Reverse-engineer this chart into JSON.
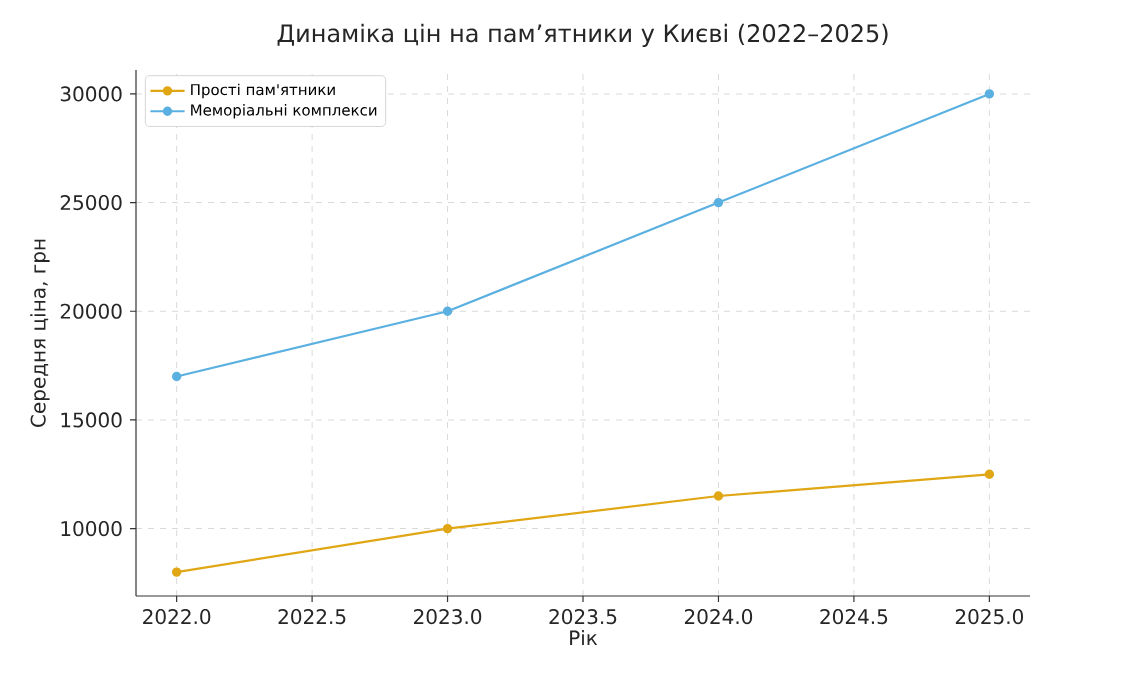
{
  "chart_data": {
    "type": "line",
    "title": "Динаміка цін на пам’ятники у Києві (2022–2025)",
    "xlabel": "Рік",
    "ylabel": "Середня ціна, грн",
    "x": [
      2022,
      2023,
      2024,
      2025
    ],
    "series": [
      {
        "name": "Прості пам'ятники",
        "color": "#e0a614",
        "values": [
          8000,
          10000,
          11500,
          12500
        ]
      },
      {
        "name": "Меморіальні комплекси",
        "color": "#5ab0e0",
        "values": [
          17000,
          20000,
          25000,
          30000
        ]
      }
    ],
    "xlim": [
      2021.85,
      2025.15
    ],
    "ylim": [
      6900,
      31100
    ],
    "xticks": [
      {
        "value": 2022,
        "label": "2022.0"
      },
      {
        "value": 2022.5,
        "label": "2022.5"
      },
      {
        "value": 2023,
        "label": "2023.0"
      },
      {
        "value": 2023.5,
        "label": "2023.5"
      },
      {
        "value": 2024,
        "label": "2024.0"
      },
      {
        "value": 2024.5,
        "label": "2024.5"
      },
      {
        "value": 2025,
        "label": "2025.0"
      }
    ],
    "yticks": [
      10000,
      15000,
      20000,
      25000,
      30000
    ],
    "grid": true,
    "legend": "top left",
    "marker": "circle",
    "line_style": "solid"
  }
}
